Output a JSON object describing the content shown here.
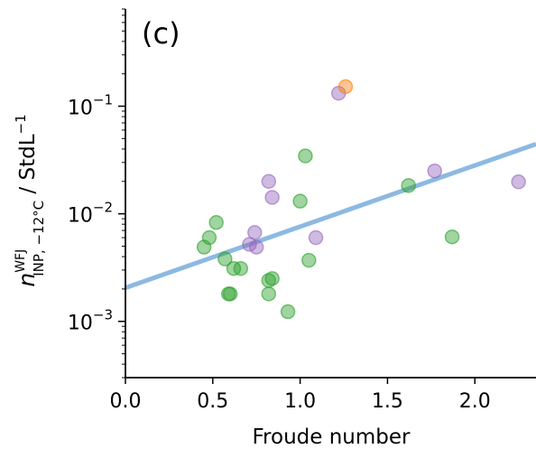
{
  "chart_data": {
    "type": "scatter",
    "panel_label": "(c)",
    "xlabel": "Froude number",
    "ylabel": {
      "base": "n",
      "superscript": "WFJ",
      "subscript": "INP, −12°C",
      "unit": " / StdL",
      "unit_exponent": "−1"
    },
    "xlim": [
      0.0,
      2.35
    ],
    "ylim": [
      0.0003,
      0.8
    ],
    "yscale": "log",
    "grid": false,
    "x_ticks": [
      {
        "value": 0.0,
        "label": "0.0"
      },
      {
        "value": 0.5,
        "label": "0.5"
      },
      {
        "value": 1.0,
        "label": "1.0"
      },
      {
        "value": 1.5,
        "label": "1.5"
      },
      {
        "value": 2.0,
        "label": "2.0"
      }
    ],
    "y_ticks": [
      {
        "value": 0.001,
        "base": "10",
        "exponent": "−3"
      },
      {
        "value": 0.01,
        "base": "10",
        "exponent": "−2"
      },
      {
        "value": 0.1,
        "base": "10",
        "exponent": "−1"
      }
    ],
    "fit_line": {
      "color": "#5b9bd5",
      "start": [
        0.0,
        0.00205
      ],
      "end": [
        2.35,
        0.0445
      ]
    },
    "series": [
      {
        "color": "#2ca02c",
        "points": [
          [
            0.45,
            0.0049
          ],
          [
            0.48,
            0.006
          ],
          [
            0.52,
            0.0083
          ],
          [
            0.57,
            0.0038
          ],
          [
            0.59,
            0.0018
          ],
          [
            0.6,
            0.0018
          ],
          [
            0.62,
            0.0031
          ],
          [
            0.66,
            0.0031
          ],
          [
            0.82,
            0.0024
          ],
          [
            0.84,
            0.0025
          ],
          [
            0.82,
            0.0018
          ],
          [
            0.93,
            0.00123
          ],
          [
            1.0,
            0.0131
          ],
          [
            1.03,
            0.0345
          ],
          [
            1.05,
            0.0037
          ],
          [
            1.62,
            0.0183
          ],
          [
            1.87,
            0.0061
          ]
        ]
      },
      {
        "color": "#9467bd",
        "points": [
          [
            0.71,
            0.0052
          ],
          [
            0.74,
            0.0067
          ],
          [
            0.75,
            0.0049
          ],
          [
            0.82,
            0.02
          ],
          [
            0.84,
            0.0142
          ],
          [
            1.09,
            0.006
          ],
          [
            1.22,
            0.132
          ],
          [
            1.77,
            0.025
          ],
          [
            2.25,
            0.0198
          ]
        ]
      },
      {
        "color": "#ff7f0e",
        "points": [
          [
            1.26,
            0.152
          ]
        ]
      }
    ]
  }
}
